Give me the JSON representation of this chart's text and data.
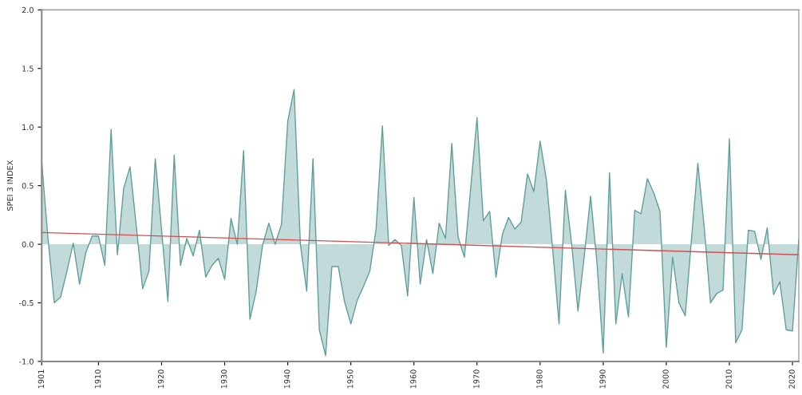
{
  "chart_data": {
    "type": "area",
    "ylabel": "SPEI 3 INDEX",
    "x": [
      1901,
      1902,
      1903,
      1904,
      1905,
      1906,
      1907,
      1908,
      1909,
      1910,
      1911,
      1912,
      1913,
      1914,
      1915,
      1916,
      1917,
      1918,
      1919,
      1920,
      1921,
      1922,
      1923,
      1924,
      1925,
      1926,
      1927,
      1928,
      1929,
      1930,
      1931,
      1932,
      1933,
      1934,
      1935,
      1936,
      1937,
      1938,
      1939,
      1940,
      1941,
      1942,
      1943,
      1944,
      1945,
      1946,
      1947,
      1948,
      1949,
      1950,
      1951,
      1952,
      1953,
      1954,
      1955,
      1956,
      1957,
      1958,
      1959,
      1960,
      1961,
      1962,
      1963,
      1964,
      1965,
      1966,
      1967,
      1968,
      1969,
      1970,
      1971,
      1972,
      1973,
      1974,
      1975,
      1976,
      1977,
      1978,
      1979,
      1980,
      1981,
      1982,
      1983,
      1984,
      1985,
      1986,
      1987,
      1988,
      1989,
      1990,
      1991,
      1992,
      1993,
      1994,
      1995,
      1996,
      1997,
      1998,
      1999,
      2000,
      2001,
      2002,
      2003,
      2004,
      2005,
      2006,
      2007,
      2008,
      2009,
      2010,
      2011,
      2012,
      2013,
      2014,
      2015,
      2016,
      2017,
      2018,
      2019,
      2020,
      2021
    ],
    "series": [
      {
        "color": "#5f9f9a",
        "values": [
          0.7,
          0.05,
          -0.5,
          -0.45,
          -0.23,
          0.01,
          -0.34,
          -0.07,
          0.07,
          0.07,
          -0.18,
          0.98,
          -0.09,
          0.48,
          0.66,
          0.15,
          -0.38,
          -0.23,
          0.73,
          0.12,
          -0.49,
          0.76,
          -0.18,
          0.05,
          -0.1,
          0.12,
          -0.28,
          -0.18,
          -0.12,
          -0.3,
          0.22,
          0.0,
          0.8,
          -0.64,
          -0.4,
          -0.01,
          0.18,
          0.0,
          0.17,
          1.05,
          1.32,
          0.0,
          -0.4,
          0.73,
          -0.73,
          -0.95,
          -0.19,
          -0.19,
          -0.49,
          -0.68,
          -0.48,
          -0.36,
          -0.23,
          0.13,
          1.01,
          -0.01,
          0.04,
          -0.01,
          -0.44,
          0.4,
          -0.34,
          0.04,
          -0.25,
          0.18,
          0.05,
          0.86,
          0.06,
          -0.11,
          0.48,
          1.08,
          0.2,
          0.28,
          -0.28,
          0.08,
          0.23,
          0.13,
          0.19,
          0.6,
          0.45,
          0.88,
          0.55,
          -0.05,
          -0.68,
          0.46,
          0.0,
          -0.57,
          -0.1,
          0.41,
          -0.15,
          -0.93,
          0.61,
          -0.68,
          -0.25,
          -0.62,
          0.29,
          0.26,
          0.56,
          0.44,
          0.28,
          -0.88,
          -0.11,
          -0.5,
          -0.61,
          0.05,
          0.69,
          0.15,
          -0.5,
          -0.42,
          -0.39,
          0.9,
          -0.84,
          -0.73,
          0.12,
          0.11,
          -0.13,
          0.14,
          -0.43,
          -0.32,
          -0.73,
          -0.74,
          0.04
        ]
      },
      {
        "type": "line",
        "color": "#d0504f",
        "x": [
          1901,
          2021
        ],
        "values": [
          0.1,
          -0.09
        ]
      }
    ],
    "xlim": [
      1901,
      2021
    ],
    "xticks": [
      1901,
      1910,
      1920,
      1930,
      1940,
      1950,
      1960,
      1970,
      1980,
      1990,
      2000,
      2010,
      2020
    ],
    "ylim": [
      -1.0,
      2.0
    ],
    "yticks": [
      {
        "value": -1.0,
        "label": "-1.0"
      },
      {
        "value": -0.5,
        "label": "-0.5"
      },
      {
        "value": 0.0,
        "label": "0.0"
      },
      {
        "value": 0.5,
        "label": "0.5"
      },
      {
        "value": 1.0,
        "label": "1.0"
      },
      {
        "value": 1.5,
        "label": "1.5"
      },
      {
        "value": 2.0,
        "label": "2.0"
      }
    ],
    "grid": false,
    "legend": false
  }
}
